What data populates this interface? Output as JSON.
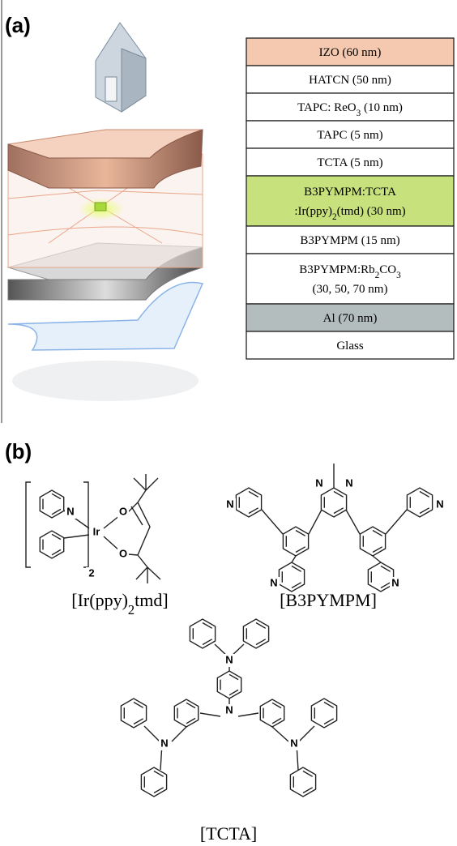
{
  "panels": {
    "a": "(a)",
    "b": "(b)"
  },
  "layers": [
    {
      "lines": [
        [
          "IZO (60 nm)"
        ]
      ],
      "color": "#f4c9af"
    },
    {
      "lines": [
        [
          "HATCN (50 nm)"
        ]
      ],
      "color": "#ffffff"
    },
    {
      "lines": [
        [
          "TAPC: ReO",
          "3",
          " (10 nm)"
        ]
      ],
      "color": "#ffffff"
    },
    {
      "lines": [
        [
          "TAPC (5 nm)"
        ]
      ],
      "color": "#ffffff"
    },
    {
      "lines": [
        [
          "TCTA (5 nm)"
        ]
      ],
      "color": "#ffffff"
    },
    {
      "lines": [
        [
          "B3PYMPM:TCTA"
        ],
        [
          ":Ir(ppy)",
          "2",
          "(tmd) (30 nm)"
        ]
      ],
      "color": "#c7e17c"
    },
    {
      "lines": [
        [
          "B3PYMPM (15 nm)"
        ]
      ],
      "color": "#ffffff"
    },
    {
      "lines": [
        [
          "B3PYMPM:Rb",
          "2",
          "CO",
          "3"
        ],
        [
          "(30, 50, 70 nm)"
        ]
      ],
      "color": "#ffffff"
    },
    {
      "lines": [
        [
          "Al  (70 nm)"
        ]
      ],
      "color": "#b3bdbe"
    },
    {
      "lines": [
        [
          "Glass"
        ]
      ],
      "color": "#ffffff"
    }
  ],
  "molecules": [
    {
      "label": [
        "[Ir(ppy)",
        "2",
        "tmd]"
      ],
      "atoms": [
        "N",
        "Ir",
        "O",
        "O",
        "2"
      ]
    },
    {
      "label": [
        "[B3PYMPM]"
      ],
      "atoms": [
        "N",
        "N",
        "N",
        "N",
        "N",
        "N"
      ]
    },
    {
      "label": [
        "[TCTA]"
      ],
      "atoms": [
        "N",
        "N",
        "N",
        "N"
      ]
    }
  ]
}
